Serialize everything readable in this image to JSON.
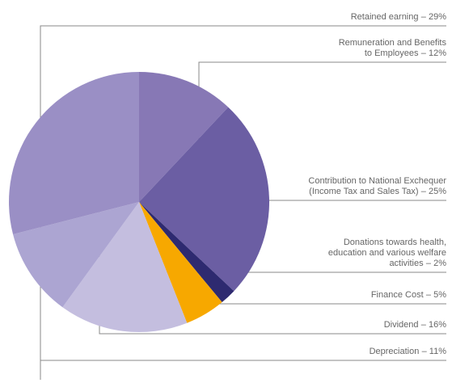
{
  "chart_data": {
    "type": "pie",
    "categories": [
      "Remuneration and Benefits\nto Employees",
      "Contribution to National Exchequer\n(Income Tax and Sales Tax)",
      "Donations towards health,\neducation and various welfare\nactivities",
      "Finance Cost",
      "Dividend",
      "Depreciation",
      "Retained earning"
    ],
    "values": [
      12,
      25,
      2,
      5,
      16,
      11,
      29
    ],
    "value_labels": [
      "– 12%",
      "– 25%",
      "– 2%",
      "– 5%",
      "– 16%",
      "– 11%",
      "– 29%"
    ],
    "colors": [
      "#8778b5",
      "#6b5ea3",
      "#2e2a70",
      "#f7a800",
      "#c4bedf",
      "#aca5d2",
      "#9a8fc5"
    ]
  }
}
